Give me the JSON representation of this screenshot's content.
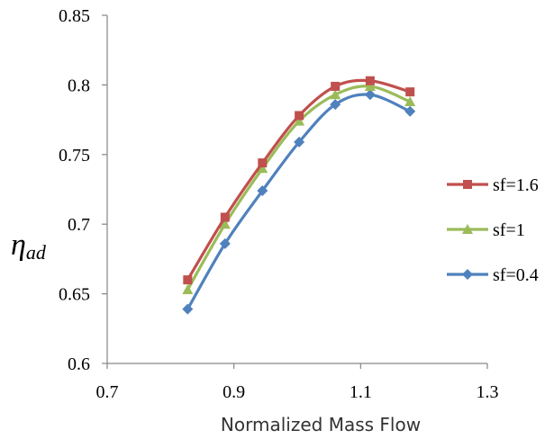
{
  "chart_data": {
    "type": "line",
    "title": "",
    "xlabel": "Normalized Mass Flow",
    "ylabel": {
      "symbol": "η",
      "subscript": "ad"
    },
    "xlim": [
      0.7,
      1.3
    ],
    "ylim": [
      0.6,
      0.85
    ],
    "xticks": [
      0.7,
      0.9,
      1.1,
      1.3
    ],
    "xtick_labels": [
      "0.7",
      "0.9",
      "1.1",
      "1.3"
    ],
    "yticks": [
      0.6,
      0.65,
      0.7,
      0.75,
      0.8,
      0.85
    ],
    "ytick_labels": [
      "0.6",
      "0.65",
      "0.7",
      "0.75",
      "0.8",
      "0.85"
    ],
    "grid": false,
    "legend_position": "right",
    "series": [
      {
        "name": "sf=1.6",
        "color": "#C0504D",
        "marker": "square",
        "x": [
          0.827,
          0.886,
          0.945,
          1.003,
          1.06,
          1.115,
          1.178
        ],
        "y": [
          0.66,
          0.705,
          0.744,
          0.778,
          0.799,
          0.803,
          0.795
        ]
      },
      {
        "name": "sf=1",
        "color": "#9BBB59",
        "marker": "triangle",
        "x": [
          0.827,
          0.886,
          0.945,
          1.003,
          1.06,
          1.115,
          1.178
        ],
        "y": [
          0.653,
          0.7,
          0.74,
          0.774,
          0.793,
          0.799,
          0.788
        ]
      },
      {
        "name": "sf=0.4",
        "color": "#4F81BD",
        "marker": "diamond",
        "x": [
          0.827,
          0.886,
          0.945,
          1.003,
          1.06,
          1.115,
          1.178
        ],
        "y": [
          0.639,
          0.686,
          0.724,
          0.759,
          0.786,
          0.793,
          0.781
        ]
      }
    ]
  }
}
